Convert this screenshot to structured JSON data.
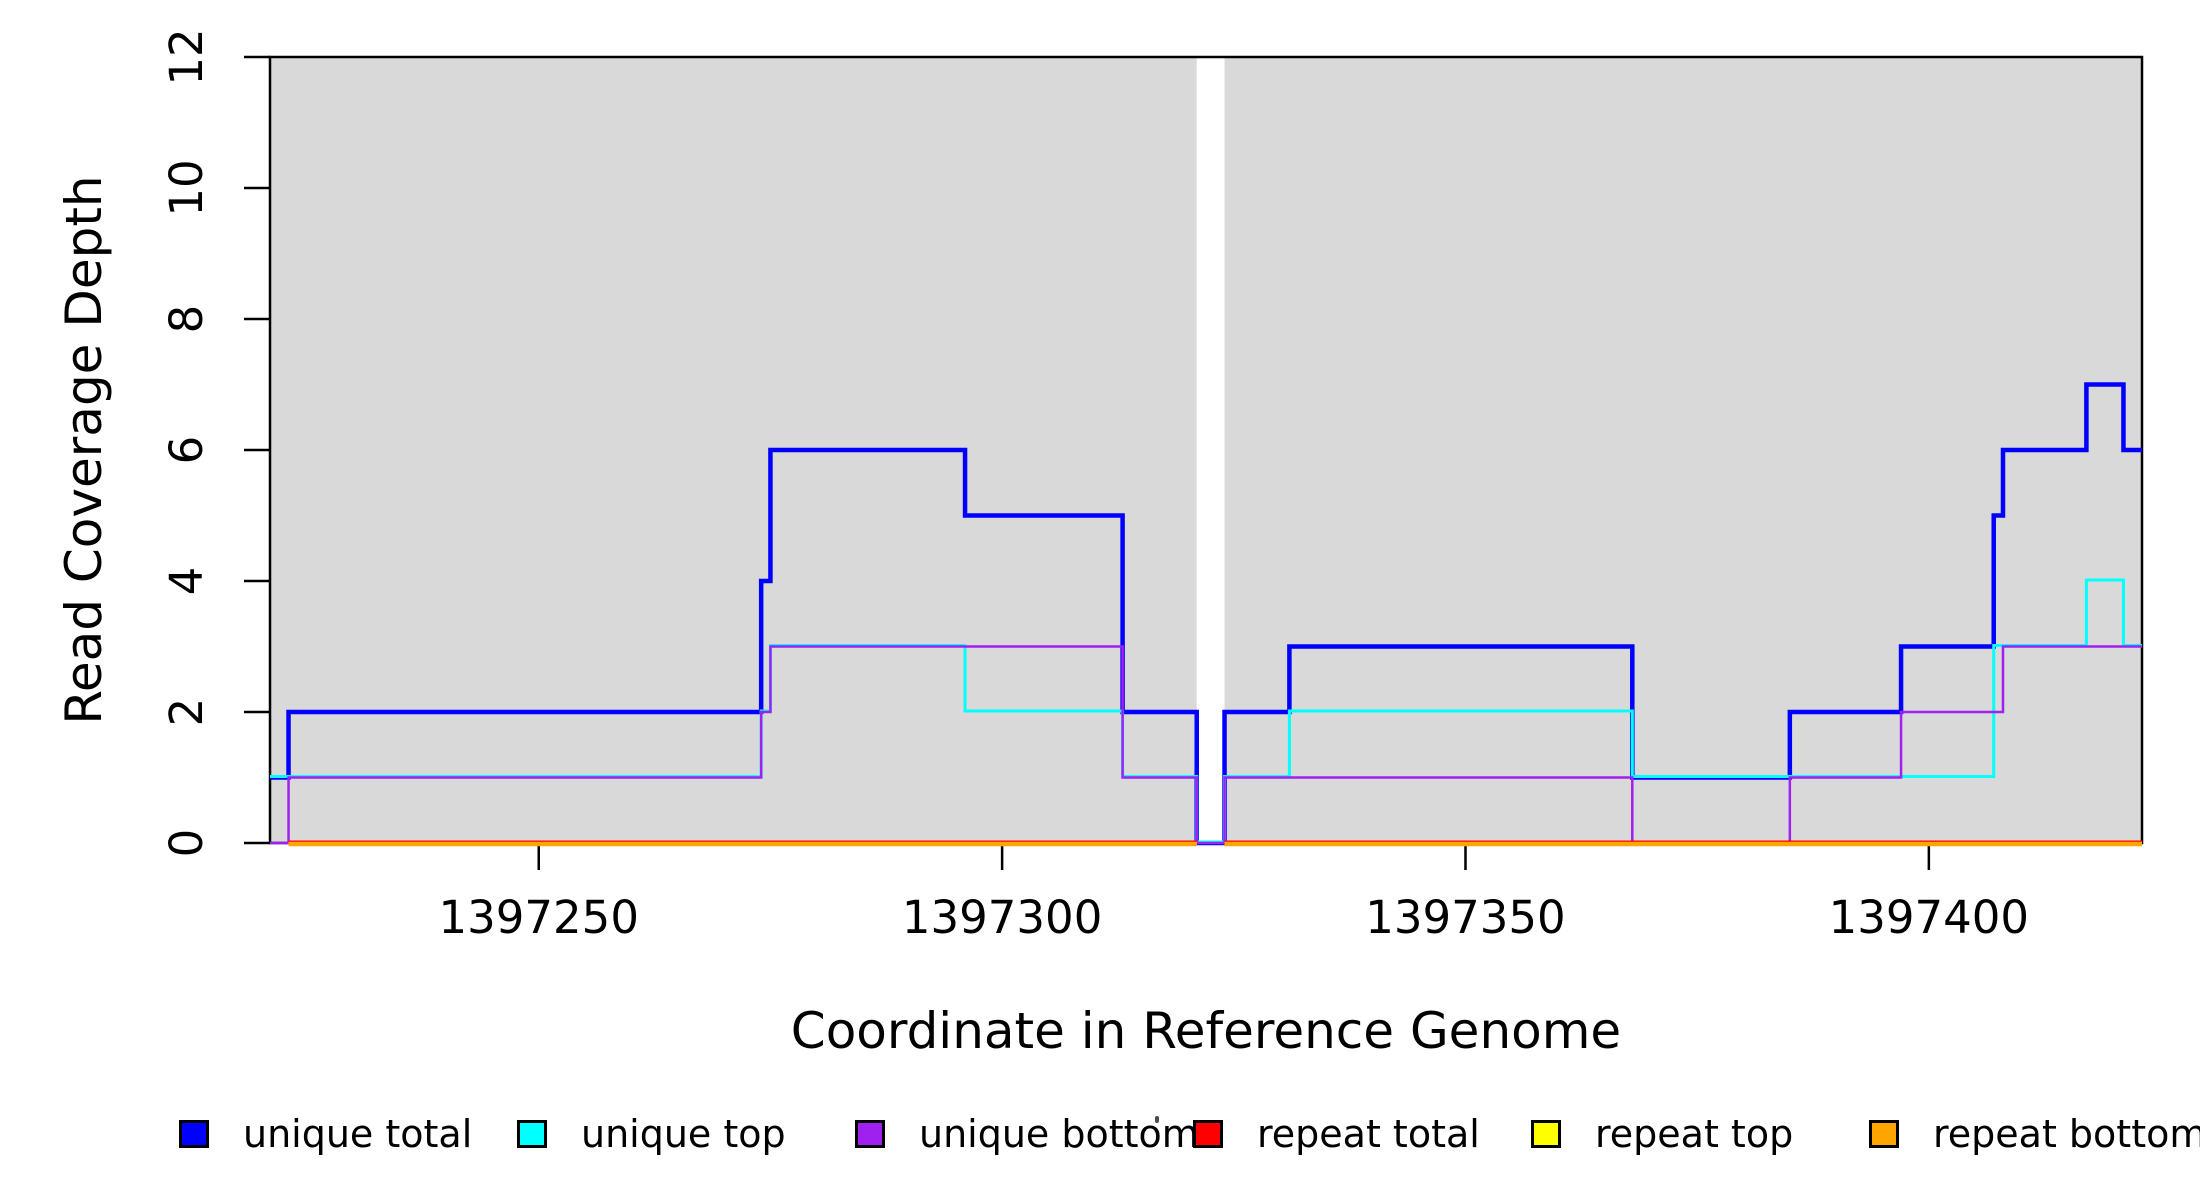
{
  "figure": {
    "background": "#FFFFFF",
    "plot_background": "#D9D9D9",
    "box_color": "#000000",
    "text_color": "#000000"
  },
  "chart_data": {
    "type": "line",
    "subtype": "step-coverage",
    "title": "",
    "xlabel": "Coordinate in Reference Genome",
    "ylabel": "Read Coverage Depth",
    "x_axis": {
      "range": [
        1397221,
        1397423
      ],
      "ticks": [
        1397250,
        1397300,
        1397350,
        1397400
      ],
      "tick_labels": [
        "1397250",
        "1397300",
        "1397350",
        "1397400"
      ]
    },
    "y_axis": {
      "range": [
        0,
        12
      ],
      "ticks": [
        0,
        2,
        4,
        6,
        8,
        10,
        12
      ],
      "tick_labels": [
        "0",
        "2",
        "4",
        "6",
        "8",
        "10",
        "12"
      ]
    },
    "grid": false,
    "covered_blocks": [
      [
        1397221,
        1397321
      ],
      [
        1397324,
        1397423
      ]
    ],
    "gap_region": [
      1397321,
      1397324
    ],
    "series": [
      {
        "name": "unique total",
        "color": "#0000FF",
        "steps": [
          [
            1397221,
            1
          ],
          [
            1397223,
            2
          ],
          [
            1397274,
            4
          ],
          [
            1397275,
            6
          ],
          [
            1397296,
            5
          ],
          [
            1397313,
            2
          ],
          [
            1397321,
            0
          ],
          [
            1397324,
            2
          ],
          [
            1397331,
            3
          ],
          [
            1397368,
            1
          ],
          [
            1397385,
            2
          ],
          [
            1397397,
            3
          ],
          [
            1397407,
            5
          ],
          [
            1397408,
            6
          ],
          [
            1397417,
            7
          ],
          [
            1397421,
            6
          ]
        ],
        "end": 1397423
      },
      {
        "name": "unique top",
        "color": "#00FFFF",
        "steps": [
          [
            1397221,
            1
          ],
          [
            1397274,
            2
          ],
          [
            1397275,
            3
          ],
          [
            1397296,
            2
          ],
          [
            1397313,
            1
          ],
          [
            1397321,
            0
          ],
          [
            1397324,
            1
          ],
          [
            1397331,
            2
          ],
          [
            1397368,
            1
          ],
          [
            1397407,
            3
          ],
          [
            1397417,
            4
          ],
          [
            1397421,
            3
          ]
        ],
        "end": 1397423
      },
      {
        "name": "unique bottom",
        "color": "#A020F0",
        "steps": [
          [
            1397221,
            0
          ],
          [
            1397223,
            1
          ],
          [
            1397274,
            2
          ],
          [
            1397275,
            3
          ],
          [
            1397313,
            1
          ],
          [
            1397321,
            0
          ],
          [
            1397324,
            1
          ],
          [
            1397368,
            0
          ],
          [
            1397385,
            1
          ],
          [
            1397397,
            2
          ],
          [
            1397408,
            3
          ]
        ],
        "end": 1397423
      },
      {
        "name": "repeat total",
        "color": "#FF0000",
        "segments": [
          [
            1397223,
            1397321,
            0
          ],
          [
            1397324,
            1397423,
            0
          ]
        ]
      },
      {
        "name": "repeat top",
        "color": "#FFFF00",
        "segments": [
          [
            1397223,
            1397321,
            0
          ],
          [
            1397324,
            1397423,
            0
          ]
        ]
      },
      {
        "name": "repeat bottom",
        "color": "#FFA500",
        "segments": [
          [
            1397223,
            1397321,
            0
          ],
          [
            1397324,
            1397423,
            0
          ]
        ]
      }
    ],
    "legend": {
      "position": "bottom",
      "items": [
        {
          "label": "unique total",
          "color": "#0000FF"
        },
        {
          "label": "unique top",
          "color": "#00FFFF"
        },
        {
          "label": "unique bottom",
          "color": "#A020F0"
        },
        {
          "label": "repeat total",
          "color": "#FF0000"
        },
        {
          "label": "repeat top",
          "color": "#FFFF00"
        },
        {
          "label": "repeat bottom",
          "color": "#FFA500"
        }
      ]
    }
  }
}
